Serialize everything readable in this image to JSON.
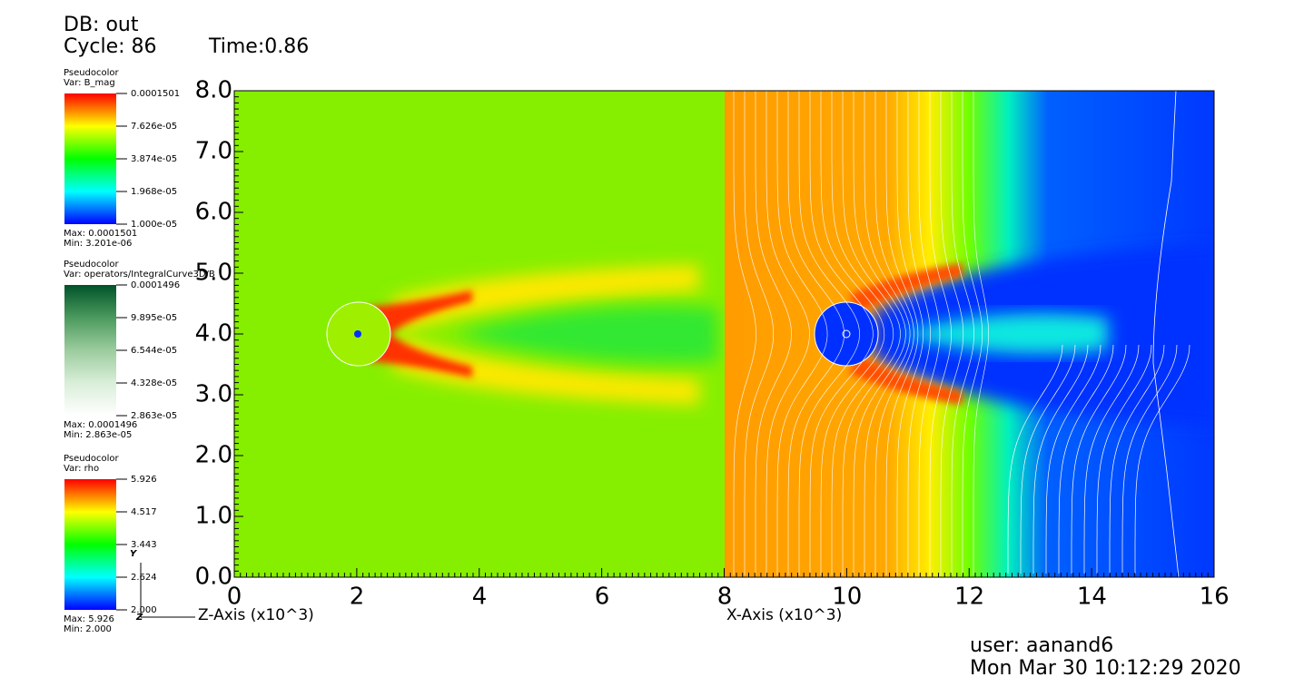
{
  "header": {
    "db": "DB: out",
    "cycle": "Cycle: 86",
    "time": "Time:0.86"
  },
  "legends": [
    {
      "plot": "Pseudocolor",
      "var": "Var: B_mag",
      "ticks": [
        "0.0001501",
        "7.626e-05",
        "3.874e-05",
        "1.968e-05",
        "1.000e-05"
      ],
      "max": "Max:  0.0001501",
      "min": "Min:  3.201e-06",
      "colors": [
        "#ff0000",
        "#ffff00",
        "#00ff00",
        "#00ffff",
        "#0000ff"
      ]
    },
    {
      "plot": "Pseudocolor",
      "var": "Var: operators/IntegralCurve3D/B",
      "ticks": [
        "0.0001496",
        "9.895e-05",
        "6.544e-05",
        "4.328e-05",
        "2.863e-05"
      ],
      "max": "Max:  0.0001496",
      "min": "Min:  2.863e-05",
      "colors": [
        "#00532a",
        "#4c9a5e",
        "#9ccc9e",
        "#d9eed9",
        "#ffffff"
      ]
    },
    {
      "plot": "Pseudocolor",
      "var": "Var: rho",
      "ticks": [
        "5.926",
        "4.517",
        "3.443",
        "2.624",
        "2.000"
      ],
      "max": "Max:  5.926",
      "min": "Min:  2.000",
      "colors": [
        "#ff0000",
        "#ffff00",
        "#00ff00",
        "#00ffff",
        "#0000ff"
      ]
    }
  ],
  "plot": {
    "yticks": [
      "8.0",
      "7.0",
      "6.0",
      "5.0",
      "4.0",
      "3.0",
      "2.0",
      "1.0",
      "0.0"
    ],
    "xticks_left": [
      "0",
      "2",
      "4",
      "6"
    ],
    "xticks_right": [
      "8",
      "10",
      "12",
      "14",
      "16"
    ],
    "xlabel_left": "Z-Axis (x10^3)",
    "xlabel_right": "X-Axis (x10^3)",
    "triad_y": "Y",
    "triad_z": "Z"
  },
  "footer": {
    "user": "user: aanand6",
    "date": "Mon Mar 30 10:12:29 2020"
  }
}
